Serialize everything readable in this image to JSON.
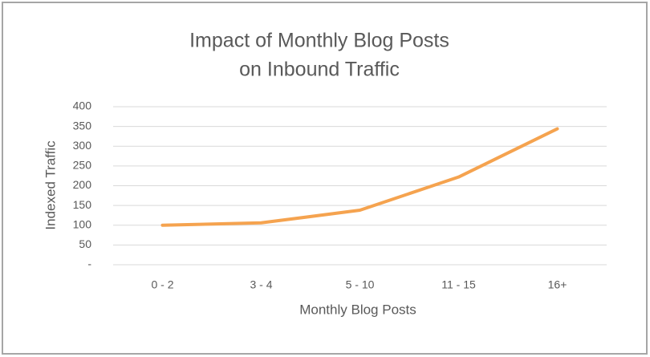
{
  "chart_data": {
    "type": "line",
    "title": [
      "Impact of Monthly Blog Posts",
      "on Inbound Traffic"
    ],
    "x_label": "Monthly Blog Posts",
    "y_label": "Indexed Traffic",
    "categories": [
      "0 - 2",
      "3 - 4",
      "5 - 10",
      "11 - 15",
      "16+"
    ],
    "series": [
      {
        "name": "Indexed Traffic",
        "color": "#f5a34f",
        "values": [
          100,
          106,
          138,
          222,
          344
        ]
      }
    ],
    "ylim": [
      0,
      400
    ],
    "yticks": [
      {
        "value": 0,
        "label": "-"
      },
      50,
      100,
      150,
      200,
      250,
      300,
      350,
      400
    ],
    "grid": true
  }
}
